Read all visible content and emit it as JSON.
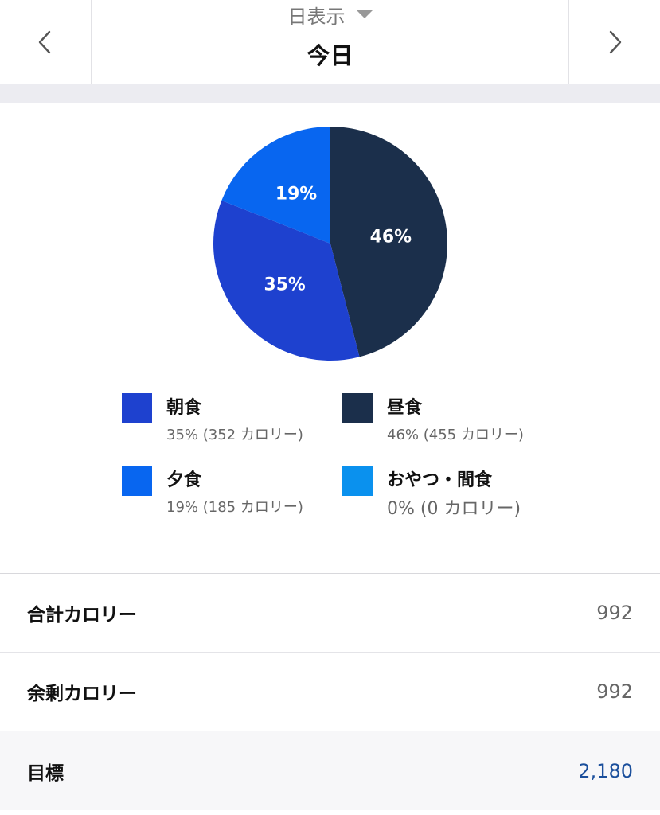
{
  "header": {
    "view_mode": "日表示",
    "date": "今日",
    "prev_icon": "chevron-left-icon",
    "next_icon": "chevron-right-icon"
  },
  "chart_data": {
    "type": "pie",
    "slices": [
      {
        "name": "昼食",
        "value": 46,
        "label": "46%",
        "color": "#1b2f4b"
      },
      {
        "name": "朝食",
        "value": 35,
        "label": "35%",
        "color": "#1e41cf"
      },
      {
        "name": "夕食",
        "value": 19,
        "label": "19%",
        "color": "#0866f0"
      },
      {
        "name": "おやつ・間食",
        "value": 0,
        "label": "",
        "color": "#0a91ee"
      }
    ],
    "start": "12 o'clock, clockwise"
  },
  "legend": [
    {
      "name": "朝食",
      "detail": "35% (352 カロリー)",
      "color": "#1e41cf"
    },
    {
      "name": "昼食",
      "detail": "46% (455 カロリー)",
      "color": "#1b2f4b"
    },
    {
      "name": "夕食",
      "detail": "19% (185 カロリー)",
      "color": "#0866f0"
    },
    {
      "name": "おやつ・間食",
      "detail": "0% (0 カロリー)",
      "color": "#0a91ee"
    }
  ],
  "summary": {
    "total_label": "合計カロリー",
    "total_value": "992",
    "remaining_label": "余剰カロリー",
    "remaining_value": "992",
    "goal_label": "目標",
    "goal_value": "2,180"
  },
  "colors": {
    "accent": "#1b4f9c",
    "band": "#ececf1"
  }
}
